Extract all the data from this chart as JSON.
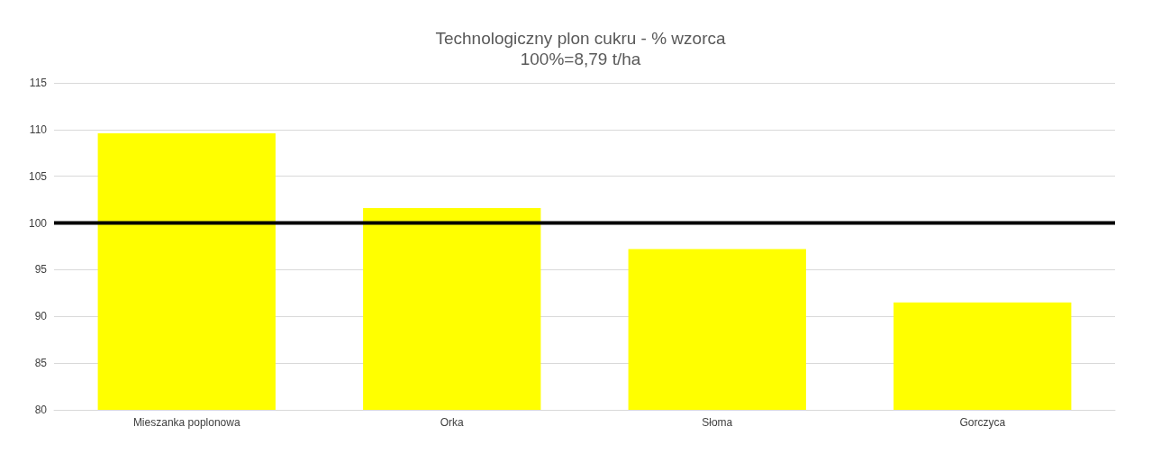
{
  "chart_data": {
    "type": "bar",
    "title": "Technologiczny plon cukru - % wzorca",
    "subtitle": "100%=8,79 t/ha",
    "categories": [
      "Mieszanka poplonowa",
      "Orka",
      "Słoma",
      "Gorczyca"
    ],
    "values": [
      109.6,
      101.6,
      97.2,
      91.5
    ],
    "color": "#ffff00",
    "ylim": [
      80,
      115
    ],
    "yticks": [
      80,
      85,
      90,
      95,
      100,
      105,
      110,
      115
    ],
    "grid": "y",
    "ref_lines": [
      {
        "axis": "y",
        "value": 100,
        "color": "#000000"
      }
    ]
  }
}
